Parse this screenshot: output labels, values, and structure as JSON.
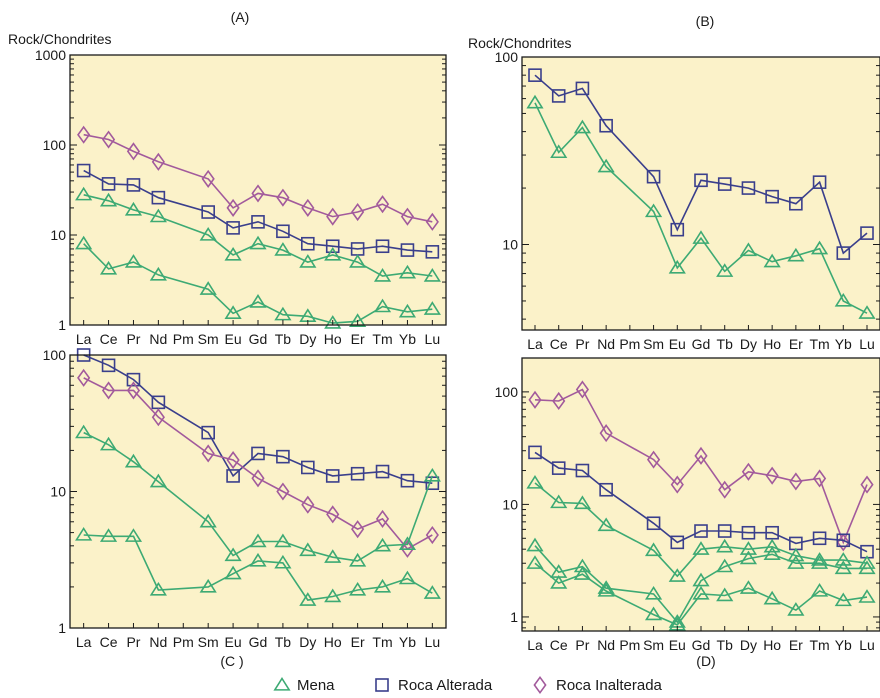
{
  "colors": {
    "plot_bg": "#fbf2c9",
    "mena": "#3daa74",
    "roca_alterada": "#3a3f8c",
    "roca_inalterada": "#a25a9c",
    "axis": "#1a1a1a"
  },
  "legend": {
    "items": [
      {
        "label": "Mena",
        "marker": "triangle",
        "color": "#3daa74"
      },
      {
        "label": "Roca Alterada",
        "marker": "square",
        "color": "#3a3f8c"
      },
      {
        "label": "Roca Inalterada",
        "marker": "diamond",
        "color": "#a25a9c"
      }
    ]
  },
  "chart_data": [
    {
      "type": "line",
      "panel_label": "(A)",
      "ylabel": "Rock/Chondrites",
      "yscale": "log",
      "ylim": [
        1,
        1000
      ],
      "y_tick_labels": [
        "1",
        "10",
        "100",
        "1000"
      ],
      "categories": [
        "La",
        "Ce",
        "Pr",
        "Nd",
        "Pm",
        "Sm",
        "Eu",
        "Gd",
        "Tb",
        "Dy",
        "Ho",
        "Er",
        "Tm",
        "Yb",
        "Lu"
      ],
      "series": [
        {
          "name": "Roca Inalterada",
          "marker": "diamond",
          "values": [
            130,
            115,
            85,
            65,
            null,
            42,
            20,
            29,
            26,
            20,
            16,
            18,
            22,
            16,
            14
          ]
        },
        {
          "name": "Roca Alterada",
          "marker": "square",
          "values": [
            52,
            37,
            36,
            26,
            null,
            18,
            12,
            14,
            11,
            8,
            7.5,
            7,
            7.5,
            6.8,
            6.5
          ]
        },
        {
          "name": "Mena",
          "marker": "triangle",
          "values": [
            28,
            24,
            19,
            16,
            null,
            10,
            6,
            8,
            6.8,
            5,
            6,
            5,
            3.5,
            3.8,
            3.5
          ]
        },
        {
          "name": "Mena",
          "marker": "triangle",
          "values": [
            8,
            4.2,
            5,
            3.6,
            null,
            2.5,
            1.35,
            1.8,
            1.3,
            1.25,
            1.05,
            1.1,
            1.6,
            1.4,
            1.5
          ]
        }
      ]
    },
    {
      "type": "line",
      "panel_label": "(B)",
      "ylabel": "Rock/Chondrites",
      "yscale": "log",
      "ylim": [
        3.5,
        100
      ],
      "y_tick_labels": [
        "10",
        "100"
      ],
      "categories": [
        "La",
        "Ce",
        "Pr",
        "Nd",
        "Pm",
        "Sm",
        "Eu",
        "Gd",
        "Tb",
        "Dy",
        "Ho",
        "Er",
        "Tm",
        "Yb",
        "Lu"
      ],
      "series": [
        {
          "name": "Roca Alterada",
          "marker": "square",
          "values": [
            80,
            62,
            68,
            43,
            null,
            23,
            12,
            22,
            21,
            20,
            18,
            16.5,
            21.5,
            9,
            11.5
          ]
        },
        {
          "name": "Mena",
          "marker": "triangle",
          "values": [
            57,
            31,
            42,
            26,
            null,
            15,
            7.5,
            10.8,
            7.2,
            9.3,
            8.1,
            8.7,
            9.5,
            5,
            4.3
          ]
        }
      ]
    },
    {
      "type": "line",
      "panel_label": "(C )",
      "ylabel": "",
      "yscale": "log",
      "ylim": [
        1,
        100
      ],
      "y_tick_labels": [
        "1",
        "10",
        "100"
      ],
      "categories": [
        "La",
        "Ce",
        "Pr",
        "Nd",
        "Pm",
        "Sm",
        "Eu",
        "Gd",
        "Tb",
        "Dy",
        "Ho",
        "Er",
        "Tm",
        "Yb",
        "Lu"
      ],
      "series": [
        {
          "name": "Roca Alterada",
          "marker": "square",
          "values": [
            100,
            84,
            66,
            45,
            null,
            27,
            13,
            19,
            18,
            15,
            13,
            13.5,
            14,
            12,
            11.5
          ]
        },
        {
          "name": "Roca Inalterada",
          "marker": "diamond",
          "values": [
            68,
            55,
            55,
            35,
            null,
            19,
            17,
            12.5,
            10,
            8,
            6.8,
            5.3,
            6.3,
            3.8,
            4.8
          ]
        },
        {
          "name": "Mena",
          "marker": "triangle",
          "values": [
            27,
            22,
            16.5,
            11.8,
            null,
            6,
            3.4,
            4.3,
            4.3,
            3.7,
            3.3,
            3.1,
            4,
            4.1,
            13
          ]
        },
        {
          "name": "Mena",
          "marker": "triangle",
          "values": [
            4.8,
            4.7,
            4.7,
            1.9,
            null,
            2,
            2.5,
            3.1,
            3,
            1.6,
            1.7,
            1.9,
            2,
            2.3,
            1.8
          ]
        }
      ]
    },
    {
      "type": "line",
      "panel_label": "(D)",
      "ylabel": "",
      "yscale": "log",
      "ylim": [
        0.75,
        200
      ],
      "y_tick_labels": [
        "1",
        "10",
        "100"
      ],
      "categories": [
        "La",
        "Ce",
        "Pr",
        "Nd",
        "Pm",
        "Sm",
        "Eu",
        "Gd",
        "Tb",
        "Dy",
        "Ho",
        "Er",
        "Tm",
        "Yb",
        "Lu"
      ],
      "series": [
        {
          "name": "Roca Inalterada",
          "marker": "diamond",
          "values": [
            85,
            83,
            105,
            43,
            null,
            25,
            15,
            27,
            13.5,
            19.5,
            18,
            16,
            17,
            4.6,
            15
          ]
        },
        {
          "name": "Roca Alterada",
          "marker": "square",
          "values": [
            29,
            21,
            20,
            13.5,
            null,
            6.8,
            4.6,
            5.8,
            5.8,
            5.6,
            5.6,
            4.5,
            5,
            4.8,
            3.8
          ]
        },
        {
          "name": "Mena",
          "marker": "triangle",
          "values": [
            15.5,
            10.4,
            10.2,
            6.5,
            null,
            3.9,
            2.3,
            4,
            4.2,
            4,
            4.2,
            3.5,
            3.2,
            3.2,
            3
          ]
        },
        {
          "name": "Mena",
          "marker": "triangle",
          "values": [
            4.3,
            2.5,
            2.8,
            1.8,
            null,
            1.6,
            0.9,
            2.1,
            2.8,
            3.3,
            3.6,
            3,
            3,
            2.7,
            2.7
          ]
        },
        {
          "name": "Mena",
          "marker": "triangle",
          "values": [
            3,
            2,
            2.4,
            1.7,
            null,
            1.05,
            0.85,
            1.6,
            1.55,
            1.8,
            1.45,
            1.15,
            1.7,
            1.4,
            1.5
          ]
        }
      ]
    }
  ]
}
